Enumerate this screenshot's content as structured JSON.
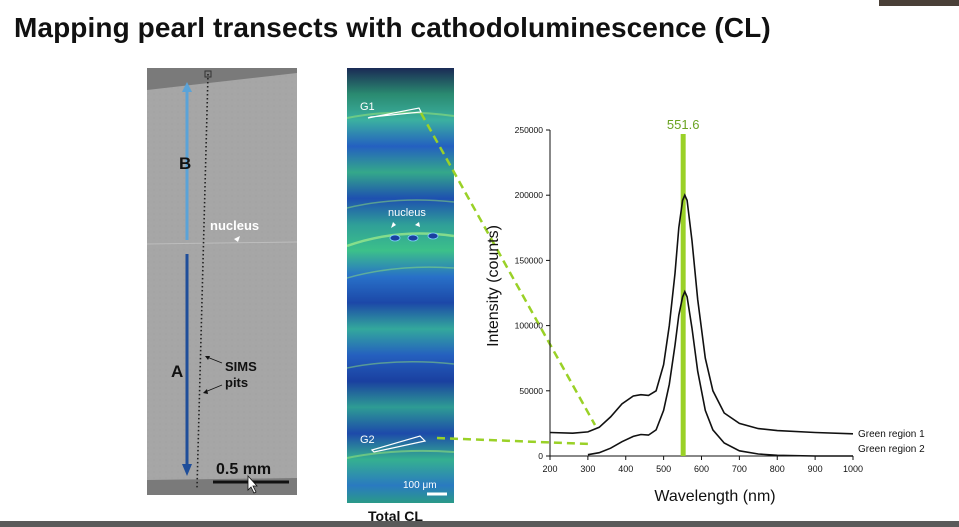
{
  "slide": {
    "title": "Mapping pearl transects with cathodoluminescence (CL)"
  },
  "sem_image": {
    "label_b": "B",
    "label_a": "A",
    "nucleus_label": "nucleus",
    "sims_label_line1": "SIMS",
    "sims_label_line2": "pits",
    "scale_label": "0.5 mm"
  },
  "cl_image": {
    "region_g1": "G1",
    "region_g2": "G2",
    "nucleus_label": "nucleus",
    "scale_label": "100 μm",
    "caption": "Total CL"
  },
  "colors": {
    "arrow_b": "#5aa3d8",
    "arrow_a": "#1f4e9a",
    "lime": "#9ad127",
    "peak_label": "#6aa322"
  },
  "chart_data": {
    "type": "line",
    "xlabel": "Wavelength (nm)",
    "ylabel": "Intensity (counts)",
    "xlim": [
      200,
      1000
    ],
    "ylim": [
      0,
      250000
    ],
    "xticks": [
      200,
      300,
      400,
      500,
      600,
      700,
      800,
      900,
      1000
    ],
    "yticks": [
      0,
      50000,
      100000,
      150000,
      200000,
      250000
    ],
    "peak_marker": {
      "x": 551.6,
      "label": "551.6"
    },
    "series": [
      {
        "name": "Green region 1",
        "x": [
          200,
          260,
          300,
          330,
          360,
          390,
          420,
          440,
          460,
          480,
          500,
          515,
          530,
          540,
          550,
          556,
          562,
          575,
          590,
          610,
          630,
          660,
          700,
          750,
          800,
          900,
          1000
        ],
        "values": [
          18000,
          17500,
          18500,
          22000,
          30000,
          40000,
          46000,
          47000,
          46500,
          50000,
          70000,
          100000,
          140000,
          175000,
          196000,
          200000,
          196000,
          165000,
          120000,
          75000,
          50000,
          33000,
          25000,
          21000,
          19500,
          18000,
          17000
        ]
      },
      {
        "name": "Green region 2",
        "x": [
          300,
          330,
          360,
          390,
          420,
          440,
          460,
          480,
          500,
          515,
          530,
          540,
          550,
          556,
          562,
          575,
          590,
          610,
          630,
          660,
          700,
          750,
          800,
          900,
          1000
        ],
        "values": [
          1000,
          2500,
          6000,
          11000,
          15000,
          16500,
          16000,
          20000,
          35000,
          55000,
          85000,
          108000,
          122000,
          126000,
          122000,
          98000,
          65000,
          35000,
          20000,
          10000,
          4000,
          1500,
          500,
          0,
          0
        ]
      }
    ]
  }
}
